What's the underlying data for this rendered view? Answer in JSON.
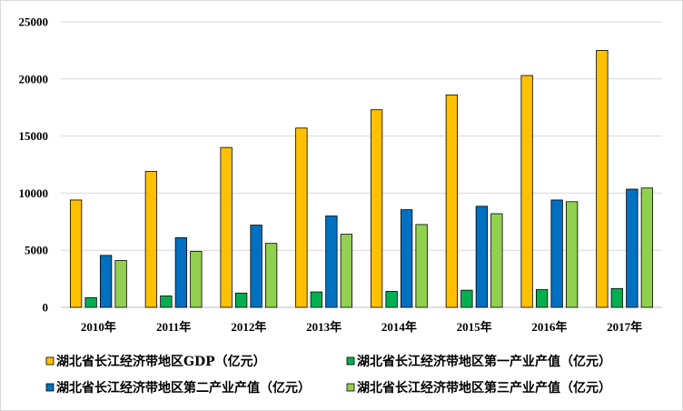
{
  "chart_data": {
    "type": "bar",
    "title": "",
    "xlabel": "",
    "ylabel": "",
    "categories": [
      "2010年",
      "2011年",
      "2012年",
      "2013年",
      "2014年",
      "2015年",
      "2016年",
      "2017年"
    ],
    "ylim": [
      0,
      25000
    ],
    "yticks": [
      0,
      5000,
      10000,
      15000,
      20000,
      25000
    ],
    "ytick_labels": [
      "0",
      "5000",
      "10000",
      "15000",
      "20000",
      "25000"
    ],
    "grid": true,
    "legend_position": "bottom",
    "series": [
      {
        "name": "湖北省长江经济带地区GDP（亿元）",
        "color": "#FFC000",
        "values": [
          9400,
          11900,
          14000,
          15700,
          17300,
          18600,
          20300,
          22500
        ]
      },
      {
        "name": "湖北省长江经济带地区第一产业产值（亿元）",
        "color": "#00B050",
        "values": [
          850,
          1000,
          1250,
          1350,
          1400,
          1500,
          1550,
          1650
        ]
      },
      {
        "name": "湖北省长江经济带地区第二产业产值（亿元）",
        "color": "#0070C0",
        "values": [
          4550,
          6100,
          7200,
          8000,
          8550,
          8850,
          9400,
          10350
        ]
      },
      {
        "name": "湖北省长江经济带地区第三产业产值（亿元）",
        "color": "#92D050",
        "values": [
          4100,
          4900,
          5600,
          6400,
          7250,
          8200,
          9250,
          10450
        ]
      }
    ]
  }
}
